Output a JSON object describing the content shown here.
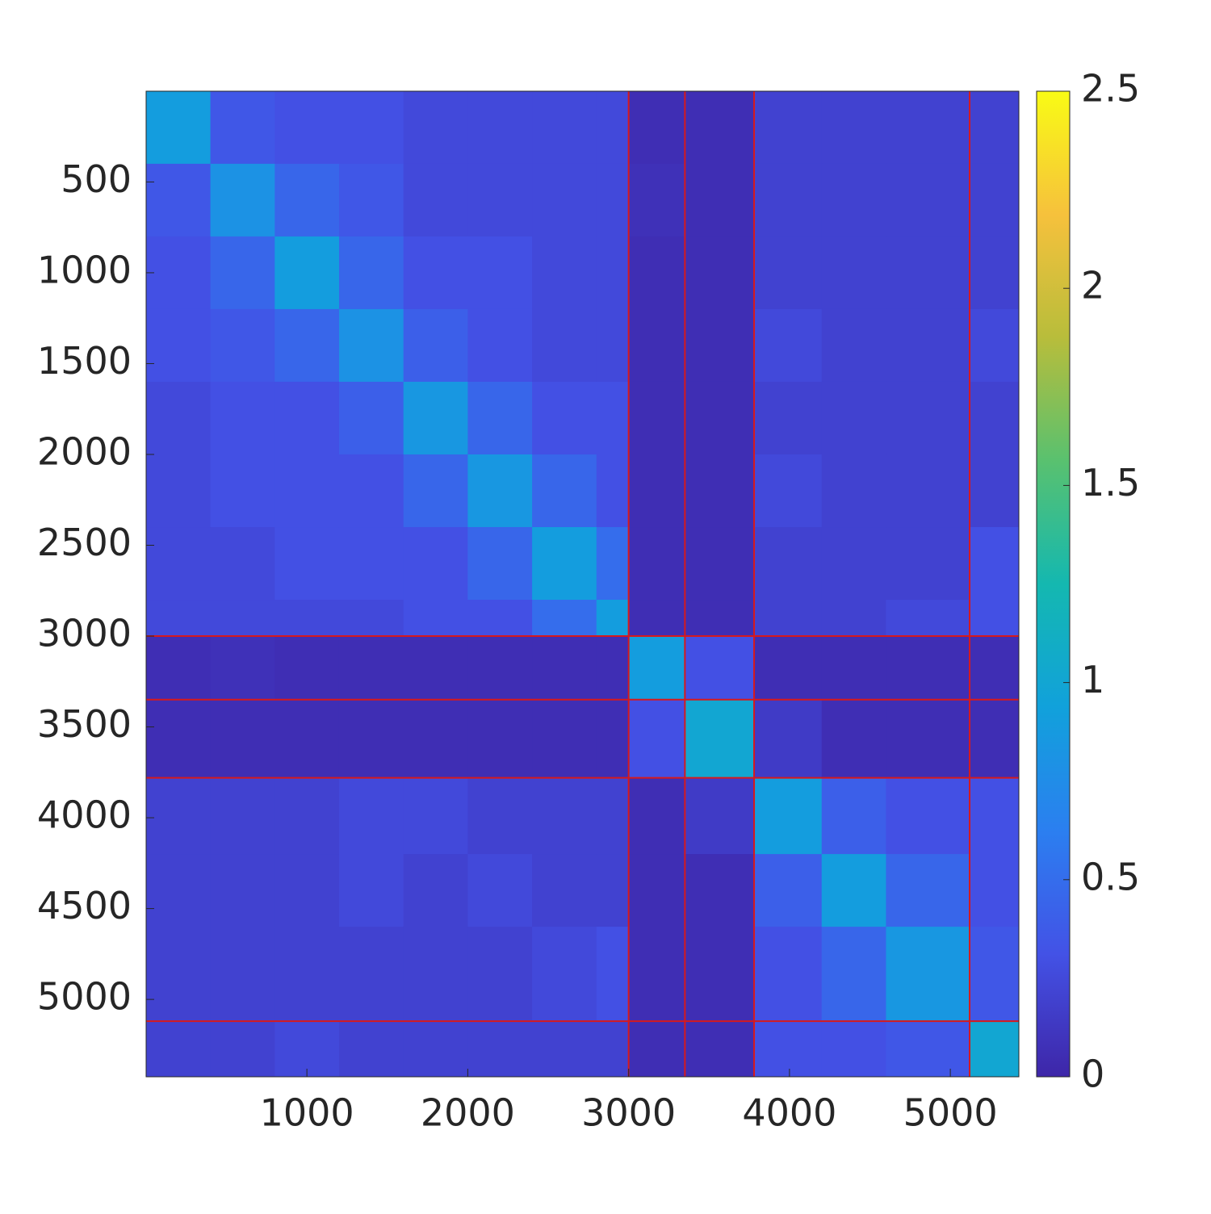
{
  "chart_data": {
    "type": "heatmap",
    "x_bins": [
      0.5,
      400,
      800,
      1200,
      1600,
      2000,
      2400,
      2800,
      3000,
      3350,
      3780,
      4200,
      4600,
      5120,
      5426
    ],
    "y_bins": [
      0.5,
      400,
      800,
      1200,
      1600,
      2000,
      2400,
      2800,
      3000,
      3350,
      3780,
      4200,
      4600,
      5120,
      5426
    ],
    "values": [
      [
        0.9,
        0.35,
        0.3,
        0.3,
        0.25,
        0.25,
        0.25,
        0.25,
        0.06,
        0.06,
        0.2,
        0.2,
        0.2,
        0.2
      ],
      [
        0.35,
        0.8,
        0.45,
        0.35,
        0.25,
        0.25,
        0.25,
        0.25,
        0.08,
        0.06,
        0.2,
        0.2,
        0.2,
        0.2
      ],
      [
        0.3,
        0.45,
        0.9,
        0.45,
        0.3,
        0.3,
        0.25,
        0.25,
        0.06,
        0.06,
        0.2,
        0.2,
        0.2,
        0.2
      ],
      [
        0.3,
        0.35,
        0.45,
        0.8,
        0.4,
        0.3,
        0.25,
        0.25,
        0.06,
        0.06,
        0.25,
        0.2,
        0.2,
        0.25
      ],
      [
        0.25,
        0.3,
        0.3,
        0.4,
        0.85,
        0.45,
        0.3,
        0.3,
        0.06,
        0.06,
        0.2,
        0.2,
        0.2,
        0.2
      ],
      [
        0.25,
        0.3,
        0.3,
        0.3,
        0.45,
        0.85,
        0.45,
        0.3,
        0.06,
        0.06,
        0.25,
        0.2,
        0.2,
        0.2
      ],
      [
        0.25,
        0.25,
        0.3,
        0.3,
        0.3,
        0.45,
        0.9,
        0.5,
        0.06,
        0.06,
        0.2,
        0.2,
        0.2,
        0.3
      ],
      [
        0.25,
        0.25,
        0.25,
        0.25,
        0.3,
        0.3,
        0.5,
        0.9,
        0.06,
        0.06,
        0.2,
        0.2,
        0.25,
        0.3
      ],
      [
        0.06,
        0.08,
        0.06,
        0.06,
        0.06,
        0.06,
        0.06,
        0.06,
        0.9,
        0.3,
        0.06,
        0.06,
        0.06,
        0.06
      ],
      [
        0.06,
        0.06,
        0.06,
        0.06,
        0.06,
        0.06,
        0.06,
        0.06,
        0.3,
        1.0,
        0.15,
        0.06,
        0.06,
        0.06
      ],
      [
        0.2,
        0.2,
        0.2,
        0.25,
        0.25,
        0.2,
        0.2,
        0.2,
        0.06,
        0.15,
        0.9,
        0.4,
        0.3,
        0.3
      ],
      [
        0.2,
        0.2,
        0.2,
        0.25,
        0.2,
        0.25,
        0.2,
        0.2,
        0.06,
        0.06,
        0.4,
        0.9,
        0.45,
        0.3
      ],
      [
        0.2,
        0.2,
        0.2,
        0.2,
        0.2,
        0.2,
        0.25,
        0.3,
        0.06,
        0.06,
        0.3,
        0.45,
        0.85,
        0.35
      ],
      [
        0.2,
        0.2,
        0.25,
        0.2,
        0.2,
        0.2,
        0.2,
        0.2,
        0.06,
        0.06,
        0.3,
        0.3,
        0.35,
        1.0
      ]
    ],
    "xlim": [
      0.5,
      5426
    ],
    "ylim": [
      0.5,
      5426
    ],
    "y_reversed": true,
    "xticks": [
      1000,
      2000,
      3000,
      4000,
      5000
    ],
    "yticks": [
      500,
      1000,
      1500,
      2000,
      2500,
      3000,
      3500,
      4000,
      4500,
      5000
    ],
    "divider_lines": [
      3000,
      3350,
      3780,
      5120
    ],
    "divider_color": "#d7191c",
    "clim": [
      0,
      2.5
    ],
    "cticks": [
      0,
      0.5,
      1,
      1.5,
      2,
      2.5
    ],
    "colormap": [
      "#3e26a8",
      "#4352e6",
      "#2b7ff0",
      "#11a1db",
      "#14b8b0",
      "#59c16f",
      "#b8bd3b",
      "#f6c13c",
      "#f9fb15"
    ]
  }
}
